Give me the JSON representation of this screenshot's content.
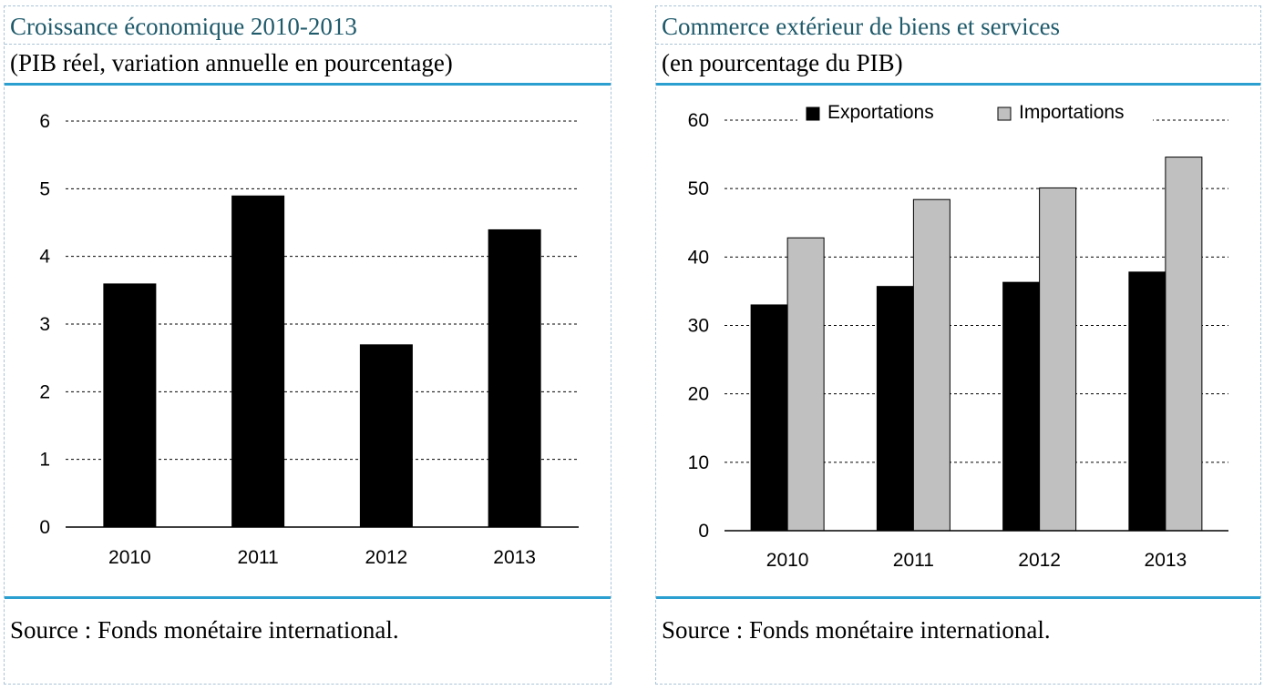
{
  "left": {
    "title": "Croissance économique 2010-2013",
    "subtitle": "(PIB réel, variation annuelle en pourcentage)",
    "source": "Source : Fonds monétaire international."
  },
  "right": {
    "title": "Commerce extérieur de biens et services",
    "subtitle": "(en pourcentage du PIB)",
    "source": "Source :  Fonds monétaire international."
  },
  "colors": {
    "title": "#1f5a6b",
    "rule": "#2a9fd0",
    "bar_primary": "#000000",
    "bar_secondary": "#c0c0c0",
    "grid": "#000000"
  },
  "chart_data": [
    {
      "type": "bar",
      "title": "Croissance économique 2010-2013",
      "subtitle": "(PIB réel, variation annuelle en pourcentage)",
      "categories": [
        "2010",
        "2011",
        "2012",
        "2013"
      ],
      "values": [
        3.6,
        4.9,
        2.7,
        4.4
      ],
      "yticks": [
        0,
        1,
        2,
        3,
        4,
        5,
        6
      ],
      "ylim": [
        0,
        6
      ],
      "xlabel": "",
      "ylabel": "",
      "grid": true,
      "grid_style": "dashed"
    },
    {
      "type": "bar",
      "title": "Commerce extérieur de biens et services",
      "subtitle": "(en pourcentage du PIB)",
      "categories": [
        "2010",
        "2011",
        "2012",
        "2013"
      ],
      "series": [
        {
          "name": "Exportations",
          "values": [
            33.0,
            35.7,
            36.3,
            37.8
          ],
          "color": "#000000"
        },
        {
          "name": "Importations",
          "values": [
            42.8,
            48.4,
            50.1,
            54.6
          ],
          "color": "#c0c0c0"
        }
      ],
      "yticks": [
        0,
        10,
        20,
        30,
        40,
        50,
        60
      ],
      "ylim": [
        0,
        60
      ],
      "xlabel": "",
      "ylabel": "",
      "grid": true,
      "grid_style": "dashed",
      "legend_position": "top"
    }
  ]
}
